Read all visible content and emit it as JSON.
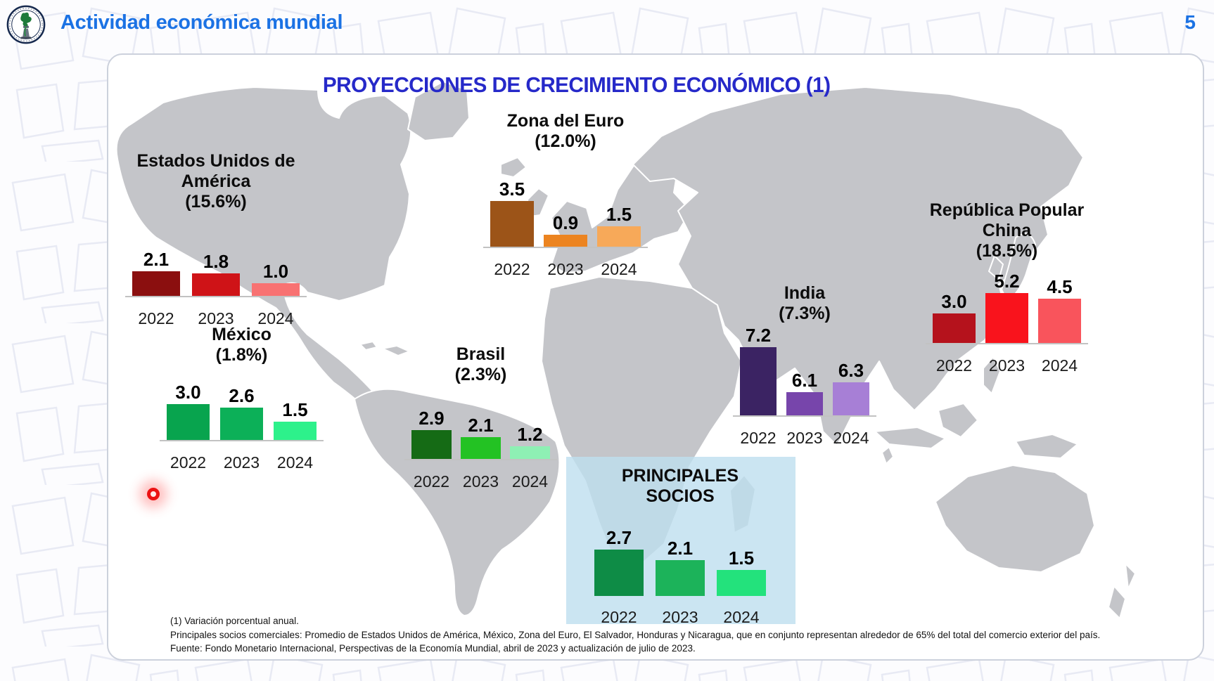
{
  "header": {
    "app_title": "Actividad económica mundial",
    "page_number": "5",
    "logo": "banco-de-guatemala-seal"
  },
  "slide": {
    "title": "PROYECCIONES DE CRECIMIENTO ECONÓMICO (1)",
    "footnotes": [
      "(1) Variación porcentual anual.",
      "Principales socios comerciales: Promedio de Estados Unidos de América, México, Zona del Euro, El Salvador, Honduras y Nicaragua, que en conjunto representan alrededor de 65% del total del comercio exterior del país.",
      "Fuente: Fondo Monetario Internacional, Perspectivas de la Economía Mundial, abril de 2023 y actualización de julio de 2023."
    ]
  },
  "chart_data": [
    {
      "type": "bar",
      "region": "Estados Unidos de América",
      "trade_share": "(15.6%)",
      "title_lines": [
        "Estados Unidos de",
        "América",
        "(15.6%)"
      ],
      "categories": [
        "2022",
        "2023",
        "2024"
      ],
      "values": [
        2.1,
        1.8,
        1.0
      ],
      "colors": [
        "#8b0f0f",
        "#cf1317",
        "#f87272"
      ],
      "zero_based": true
    },
    {
      "type": "bar",
      "region": "Zona del Euro",
      "trade_share": "(12.0%)",
      "title_lines": [
        "Zona del Euro",
        "(12.0%)"
      ],
      "categories": [
        "2022",
        "2023",
        "2024"
      ],
      "values": [
        3.5,
        0.9,
        1.5
      ],
      "colors": [
        "#9c5418",
        "#ec8420",
        "#f7a959"
      ],
      "zero_based": true
    },
    {
      "type": "bar",
      "region": "México",
      "trade_share": "(1.8%)",
      "title_lines": [
        "México",
        "(1.8%)"
      ],
      "categories": [
        "2022",
        "2023",
        "2024"
      ],
      "values": [
        3.0,
        2.6,
        1.5
      ],
      "colors": [
        "#08a44e",
        "#0cb058",
        "#2df18b"
      ],
      "zero_based": true
    },
    {
      "type": "bar",
      "region": "Brasil",
      "trade_share": "(2.3%)",
      "title_lines": [
        "Brasil",
        "(2.3%)"
      ],
      "categories": [
        "2022",
        "2023",
        "2024"
      ],
      "values": [
        2.9,
        2.1,
        1.2
      ],
      "colors": [
        "#156b15",
        "#23c223",
        "#8ef0b4"
      ],
      "zero_based": true
    },
    {
      "type": "bar",
      "region": "India",
      "trade_share": "(7.3%)",
      "title_lines": [
        "India",
        "(7.3%)"
      ],
      "categories": [
        "2022",
        "2023",
        "2024"
      ],
      "values": [
        7.2,
        6.1,
        6.3
      ],
      "colors": [
        "#3b2363",
        "#7745ab",
        "#a77fd6"
      ],
      "zero_based": false
    },
    {
      "type": "bar",
      "region": "República Popular China",
      "trade_share": "(18.5%)",
      "title_lines": [
        "República Popular",
        "China",
        "(18.5%)"
      ],
      "categories": [
        "2022",
        "2023",
        "2024"
      ],
      "values": [
        3.0,
        5.2,
        4.5
      ],
      "colors": [
        "#b5121c",
        "#f9131c",
        "#f9545c"
      ],
      "zero_based": true
    },
    {
      "type": "bar",
      "region": "Principales Socios",
      "trade_share": "",
      "title_lines": [
        "PRINCIPALES",
        "SOCIOS"
      ],
      "categories": [
        "2022",
        "2023",
        "2024"
      ],
      "values": [
        2.7,
        2.1,
        1.5
      ],
      "colors": [
        "#0e8c46",
        "#1cb35a",
        "#23e27c"
      ],
      "zero_based": true,
      "panel_color": "#cbe5f2"
    }
  ]
}
